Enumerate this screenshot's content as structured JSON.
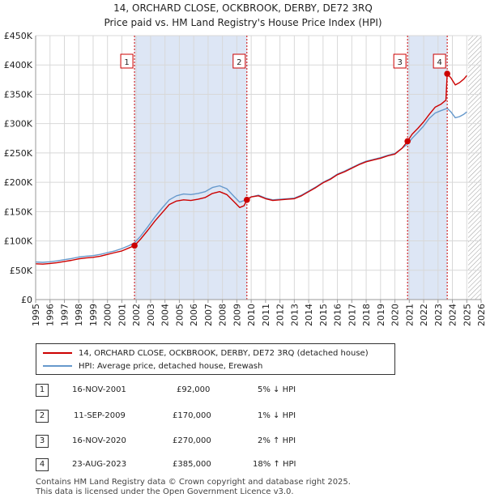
{
  "title_line1": "14, ORCHARD CLOSE, OCKBROOK, DERBY, DE72 3RQ",
  "title_line2": "Price paid vs. HM Land Registry's House Price Index (HPI)",
  "colors": {
    "price": "#cc0000",
    "hpi": "#6699cc",
    "shade": "#dde6f5",
    "grid": "#d8d8d8",
    "future_hatch": "#999999"
  },
  "chart_data": {
    "type": "line",
    "title": "14, ORCHARD CLOSE, OCKBROOK, DERBY, DE72 3RQ",
    "subtitle": "Price paid vs. HM Land Registry's House Price Index (HPI)",
    "xlabel": "",
    "ylabel": "",
    "xlim": [
      1995,
      2026
    ],
    "ylim": [
      0,
      450000
    ],
    "y_ticks": [
      {
        "value": 0,
        "label": "£0"
      },
      {
        "value": 50000,
        "label": "£50K"
      },
      {
        "value": 100000,
        "label": "£100K"
      },
      {
        "value": 150000,
        "label": "£150K"
      },
      {
        "value": 200000,
        "label": "£200K"
      },
      {
        "value": 250000,
        "label": "£250K"
      },
      {
        "value": 300000,
        "label": "£300K"
      },
      {
        "value": 350000,
        "label": "£350K"
      },
      {
        "value": 400000,
        "label": "£400K"
      },
      {
        "value": 450000,
        "label": "£450K"
      }
    ],
    "x_ticks": [
      "1995",
      "1996",
      "1997",
      "1998",
      "1999",
      "2000",
      "2001",
      "2002",
      "2003",
      "2004",
      "2005",
      "2006",
      "2007",
      "2008",
      "2009",
      "2010",
      "2011",
      "2012",
      "2013",
      "2014",
      "2015",
      "2016",
      "2017",
      "2018",
      "2019",
      "2020",
      "2021",
      "2022",
      "2023",
      "2024",
      "2025",
      "2026"
    ],
    "grid": true,
    "shaded_ranges": [
      [
        2001.88,
        2009.7
      ],
      [
        2020.88,
        2023.64
      ]
    ],
    "future_from": 2025.1,
    "series": [
      {
        "name": "14, ORCHARD CLOSE, OCKBROOK, DERBY, DE72 3RQ (detached house)",
        "color": "#cc0000",
        "x": [
          1995.0,
          1995.5,
          1996.0,
          1996.5,
          1997.0,
          1997.5,
          1998.0,
          1998.5,
          1999.0,
          1999.5,
          2000.0,
          2000.5,
          2001.0,
          2001.5,
          2001.88,
          2002.3,
          2002.8,
          2003.3,
          2003.8,
          2004.3,
          2004.8,
          2005.3,
          2005.8,
          2006.3,
          2006.8,
          2007.3,
          2007.8,
          2008.3,
          2008.8,
          2009.2,
          2009.5,
          2009.7,
          2010.0,
          2010.5,
          2011.0,
          2011.5,
          2012.0,
          2012.5,
          2013.0,
          2013.5,
          2014.0,
          2014.5,
          2015.0,
          2015.5,
          2016.0,
          2016.5,
          2017.0,
          2017.5,
          2018.0,
          2018.5,
          2019.0,
          2019.5,
          2020.0,
          2020.5,
          2020.88,
          2021.2,
          2021.6,
          2022.0,
          2022.4,
          2022.8,
          2023.2,
          2023.55,
          2023.64,
          2023.9,
          2024.2,
          2024.5,
          2024.8,
          2025.0
        ],
        "values": [
          61000,
          60500,
          61500,
          63000,
          65000,
          67000,
          69500,
          71000,
          72000,
          74000,
          77000,
          80000,
          83000,
          88000,
          92000,
          103000,
          118000,
          134000,
          148000,
          162000,
          168000,
          170000,
          169000,
          171000,
          174000,
          181000,
          184000,
          179000,
          167000,
          157000,
          160000,
          170000,
          175000,
          177000,
          172000,
          169000,
          170000,
          171000,
          172000,
          177000,
          184000,
          191000,
          199000,
          205000,
          213000,
          218000,
          224000,
          230000,
          235000,
          238000,
          241000,
          245000,
          248000,
          258000,
          270000,
          282000,
          292000,
          303000,
          316000,
          328000,
          333000,
          340000,
          385000,
          378000,
          366000,
          370000,
          376000,
          382000
        ]
      },
      {
        "name": "HPI: Average price, detached house, Erewash",
        "color": "#6699cc",
        "x": [
          1995.0,
          1995.5,
          1996.0,
          1996.5,
          1997.0,
          1997.5,
          1998.0,
          1998.5,
          1999.0,
          1999.5,
          2000.0,
          2000.5,
          2001.0,
          2001.5,
          2001.88,
          2002.3,
          2002.8,
          2003.3,
          2003.8,
          2004.3,
          2004.8,
          2005.3,
          2005.8,
          2006.3,
          2006.8,
          2007.3,
          2007.8,
          2008.3,
          2008.8,
          2009.2,
          2009.5,
          2009.7,
          2010.0,
          2010.5,
          2011.0,
          2011.5,
          2012.0,
          2012.5,
          2013.0,
          2013.5,
          2014.0,
          2014.5,
          2015.0,
          2015.5,
          2016.0,
          2016.5,
          2017.0,
          2017.5,
          2018.0,
          2018.5,
          2019.0,
          2019.5,
          2020.0,
          2020.5,
          2020.88,
          2021.2,
          2021.6,
          2022.0,
          2022.4,
          2022.8,
          2023.2,
          2023.64,
          2023.9,
          2024.2,
          2024.5,
          2024.8,
          2025.0
        ],
        "values": [
          64000,
          63500,
          64500,
          66000,
          68000,
          70000,
          72500,
          74000,
          75000,
          77000,
          80000,
          83000,
          87000,
          92000,
          97000,
          108000,
          124000,
          141000,
          156000,
          170000,
          177000,
          180000,
          179000,
          181000,
          184000,
          191000,
          194000,
          189000,
          176000,
          166000,
          169000,
          172000,
          175000,
          178000,
          173000,
          170000,
          171000,
          172000,
          173000,
          178000,
          185000,
          192000,
          200000,
          206000,
          214000,
          219000,
          225000,
          231000,
          236000,
          239000,
          242000,
          246000,
          249000,
          258000,
          265000,
          275000,
          285000,
          296000,
          309000,
          318000,
          322000,
          326000,
          320000,
          310000,
          312000,
          316000,
          320000
        ]
      }
    ],
    "sales": [
      {
        "label": "1",
        "x": 2001.88,
        "value": 92000
      },
      {
        "label": "2",
        "x": 2009.7,
        "value": 170000
      },
      {
        "label": "3",
        "x": 2020.88,
        "value": 270000
      },
      {
        "label": "4",
        "x": 2023.64,
        "value": 385000
      }
    ]
  },
  "legend": {
    "price_label": "14, ORCHARD CLOSE, OCKBROOK, DERBY, DE72 3RQ (detached house)",
    "hpi_label": "HPI: Average price, detached house, Erewash"
  },
  "transactions": [
    {
      "num": "1",
      "date": "16-NOV-2001",
      "price": "£92,000",
      "hpi": "5% ↓ HPI"
    },
    {
      "num": "2",
      "date": "11-SEP-2009",
      "price": "£170,000",
      "hpi": "1% ↓ HPI"
    },
    {
      "num": "3",
      "date": "16-NOV-2020",
      "price": "£270,000",
      "hpi": "2% ↑ HPI"
    },
    {
      "num": "4",
      "date": "23-AUG-2023",
      "price": "£385,000",
      "hpi": "18% ↑ HPI"
    }
  ],
  "footer": {
    "line1": "Contains HM Land Registry data © Crown copyright and database right 2025.",
    "line2": "This data is licensed under the Open Government Licence v3.0."
  }
}
